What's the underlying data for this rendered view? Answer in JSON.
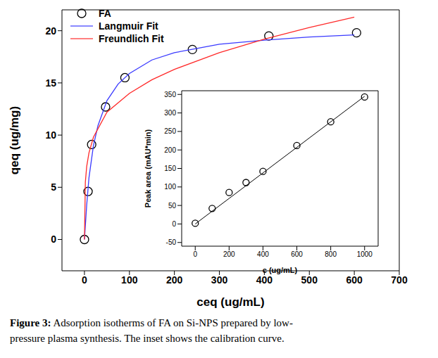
{
  "caption": "Figure 3: Adsorption isotherms of FA on Si-NPS prepared by low-pressure plasma synthesis. The inset shows the calibration curve.",
  "chart_data": [
    {
      "type": "scatter",
      "x_label": "ceq (ug/mL)",
      "y_label": "qeq (ug/mg)",
      "xlim": [
        -50,
        700
      ],
      "xticks": [
        0,
        100,
        200,
        300,
        400,
        500,
        600,
        700
      ],
      "ylim": [
        -3,
        22
      ],
      "yticks": [
        0,
        5,
        10,
        15,
        20
      ],
      "legend": "upper left",
      "series": [
        {
          "name": "FA",
          "type": "scatter",
          "marker": "circle",
          "color": "#000000",
          "x": [
            0,
            8,
            16,
            47,
            90,
            240,
            410,
            605
          ],
          "values": [
            0,
            4.6,
            9.1,
            12.7,
            15.5,
            18.2,
            19.5,
            19.8
          ]
        },
        {
          "name": "Langmuir Fit",
          "type": "line",
          "line_style": "solid",
          "color": "#3a3aff",
          "x": [
            0,
            5,
            10,
            20,
            30,
            50,
            75,
            100,
            150,
            200,
            250,
            300,
            400,
            500,
            600
          ],
          "values": [
            0,
            3.3,
            5.9,
            9.0,
            10.9,
            13.3,
            14.9,
            15.9,
            17.2,
            17.9,
            18.3,
            18.7,
            19.1,
            19.4,
            19.6
          ]
        },
        {
          "name": "Freundlich Fit",
          "type": "line",
          "line_style": "solid",
          "color": "#ff2a2a",
          "x": [
            0,
            2,
            5,
            10,
            20,
            50,
            100,
            150,
            200,
            300,
            400,
            500,
            600
          ],
          "values": [
            0,
            5.5,
            7.0,
            8.3,
            9.8,
            12.2,
            14.0,
            15.3,
            16.3,
            17.9,
            19.2,
            20.3,
            21.3
          ]
        }
      ]
    },
    {
      "type": "scatter",
      "x_label": "c (ug/mL)",
      "y_label": "Peak area (mAU*min)",
      "xlim": [
        -80,
        1080
      ],
      "xticks": [
        0,
        200,
        400,
        600,
        800,
        1000
      ],
      "ylim": [
        -60,
        360
      ],
      "yticks": [
        -50,
        0,
        50,
        100,
        150,
        200,
        250,
        300,
        350
      ],
      "series": [
        {
          "type": "scatter",
          "marker": "circle",
          "color": "#000000",
          "x": [
            0,
            100,
            200,
            300,
            400,
            600,
            800,
            1000
          ],
          "values": [
            2,
            42,
            85,
            112,
            142,
            212,
            276,
            343
          ]
        },
        {
          "type": "line",
          "line_style": "solid",
          "color": "#000000",
          "x": [
            0,
            1000
          ],
          "values": [
            0,
            345
          ]
        }
      ]
    }
  ]
}
